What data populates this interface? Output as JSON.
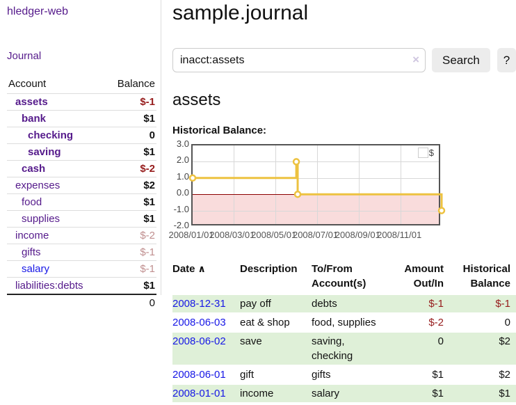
{
  "app": {
    "title": "hledger-web",
    "nav_journal": "Journal"
  },
  "sidebar": {
    "header": {
      "account": "Account",
      "balance": "Balance"
    },
    "accounts": [
      {
        "label": "assets",
        "indent": 1,
        "bold": true,
        "balance": "$-1",
        "balance_class": "neg",
        "link_class": ""
      },
      {
        "label": "bank",
        "indent": 2,
        "bold": true,
        "balance": "$1",
        "balance_class": "",
        "link_class": ""
      },
      {
        "label": "checking",
        "indent": 3,
        "bold": true,
        "balance": "0",
        "balance_class": "",
        "link_class": ""
      },
      {
        "label": "saving",
        "indent": 3,
        "bold": true,
        "balance": "$1",
        "balance_class": "",
        "link_class": ""
      },
      {
        "label": "cash",
        "indent": 2,
        "bold": true,
        "balance": "$-2",
        "balance_class": "neg",
        "link_class": ""
      },
      {
        "label": "expenses",
        "indent": 1,
        "bold": false,
        "balance": "$2",
        "balance_class": "",
        "link_class": ""
      },
      {
        "label": "food",
        "indent": 2,
        "bold": false,
        "balance": "$1",
        "balance_class": "",
        "link_class": ""
      },
      {
        "label": "supplies",
        "indent": 2,
        "bold": false,
        "balance": "$1",
        "balance_class": "",
        "link_class": ""
      },
      {
        "label": "income",
        "indent": 1,
        "bold": false,
        "balance": "$-2",
        "balance_class": "neg-faded",
        "link_class": ""
      },
      {
        "label": "gifts",
        "indent": 2,
        "bold": false,
        "balance": "$-1",
        "balance_class": "neg-faded",
        "link_class": ""
      },
      {
        "label": "salary",
        "indent": 2,
        "bold": false,
        "balance": "$-1",
        "balance_class": "neg-faded",
        "link_class": "blue"
      },
      {
        "label": "liabilities:debts",
        "indent": 1,
        "bold": false,
        "balance": "$1",
        "balance_class": "",
        "link_class": ""
      }
    ],
    "total": "0"
  },
  "main": {
    "title": "sample.journal",
    "search": {
      "value": "inacct:assets",
      "clear_icon": "×",
      "button_label": "Search",
      "help_label": "?"
    },
    "account_heading": "assets",
    "chart_label": "Historical Balance:"
  },
  "chart_data": {
    "type": "line",
    "title": "Historical Balance",
    "style": "step-after with open circle markers",
    "series": [
      {
        "name": "$",
        "color": "#edc240",
        "x": [
          "2008-01-01",
          "2008-06-01",
          "2008-06-03",
          "2008-12-31"
        ],
        "y": [
          1,
          2,
          0,
          -1
        ]
      }
    ],
    "ylim": [
      -2,
      3
    ],
    "yticks": [
      "3.0",
      "2.0",
      "1.0",
      "0.0",
      "-1.0",
      "-2.0"
    ],
    "xticks": [
      "2008/01/01",
      "2008/03/01",
      "2008/05/01",
      "2008/07/01",
      "2008/09/01",
      "2008/11/01"
    ],
    "legend_position": "top-right",
    "negative_region_color": "#f9dcdc",
    "zero_line_color": "#8b0000",
    "grid": true
  },
  "register": {
    "headers": {
      "date": "Date",
      "sort_icon": "∧",
      "description": "Description",
      "accounts": "To/From Account(s)",
      "amount": "Amount Out/In",
      "balance": "Historical Balance"
    },
    "rows": [
      {
        "date": "2008-12-31",
        "description": "pay off",
        "accounts": "debts",
        "amount": "$-1",
        "amount_negative": true,
        "balance": "$-1",
        "balance_negative": true
      },
      {
        "date": "2008-06-03",
        "description": "eat & shop",
        "accounts": "food, supplies",
        "amount": "$-2",
        "amount_negative": true,
        "balance": "0",
        "balance_negative": false
      },
      {
        "date": "2008-06-02",
        "description": "save",
        "accounts": "saving, checking",
        "amount": "0",
        "amount_negative": false,
        "balance": "$2",
        "balance_negative": false
      },
      {
        "date": "2008-06-01",
        "description": "gift",
        "accounts": "gifts",
        "amount": "$1",
        "amount_negative": false,
        "balance": "$2",
        "balance_negative": false
      },
      {
        "date": "2008-01-01",
        "description": "income",
        "accounts": "salary",
        "amount": "$1",
        "amount_negative": false,
        "balance": "$1",
        "balance_negative": false
      }
    ]
  }
}
